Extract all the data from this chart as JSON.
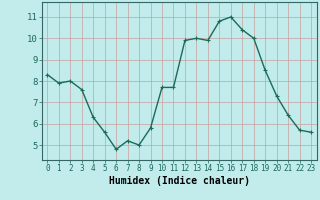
{
  "x": [
    0,
    1,
    2,
    3,
    4,
    5,
    6,
    7,
    8,
    9,
    10,
    11,
    12,
    13,
    14,
    15,
    16,
    17,
    18,
    19,
    20,
    21,
    22,
    23
  ],
  "y": [
    8.3,
    7.9,
    8.0,
    7.6,
    6.3,
    5.6,
    4.8,
    5.2,
    5.0,
    5.8,
    7.7,
    7.7,
    9.9,
    10.0,
    9.9,
    10.8,
    11.0,
    10.4,
    10.0,
    8.5,
    7.3,
    6.4,
    5.7,
    5.6
  ],
  "line_color": "#1a6b5a",
  "marker": "+",
  "marker_size": 3,
  "line_width": 1.0,
  "bg_color": "#c2ebeb",
  "grid_color": "#c8a0a0",
  "xlabel": "Humidex (Indice chaleur)",
  "xlabel_fontsize": 7,
  "ytick_labels": [
    "5",
    "6",
    "7",
    "8",
    "9",
    "10",
    "11"
  ],
  "ylim": [
    4.3,
    11.7
  ],
  "xlim": [
    -0.5,
    23.5
  ],
  "xtick_fontsize": 5.5,
  "ytick_fontsize": 6.5
}
